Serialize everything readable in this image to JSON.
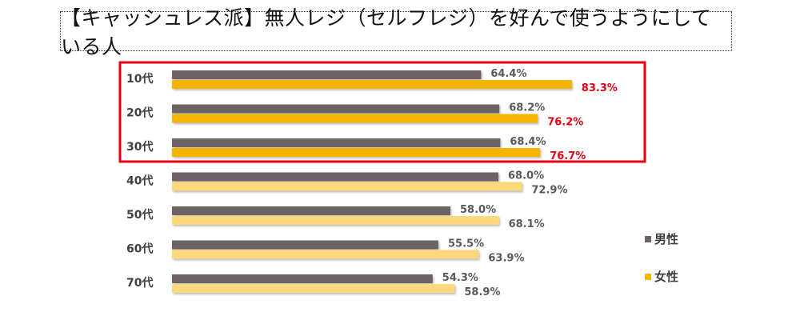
{
  "title": "【キャッシュレス派】無人レジ（セルフレジ）を好んで使うようにしている人",
  "chart_data": {
    "type": "bar",
    "orientation": "horizontal",
    "title": "【キャッシュレス派】無人レジ（セルフレジ）を好んで使うようにしている人",
    "categories": [
      "10代",
      "20代",
      "30代",
      "40代",
      "50代",
      "60代",
      "70代"
    ],
    "series": [
      {
        "name": "男性",
        "values": [
          64.4,
          68.2,
          68.4,
          68.0,
          58.0,
          55.5,
          54.3
        ],
        "color": "#6d6363"
      },
      {
        "name": "女性",
        "values": [
          83.3,
          76.2,
          76.7,
          72.9,
          68.1,
          63.9,
          58.9
        ],
        "color": "#f4b400",
        "color_faded": "#fcd87a"
      }
    ],
    "value_labels": {
      "男性": [
        "64.4%",
        "68.2%",
        "68.4%",
        "68.0%",
        "58.0%",
        "55.5%",
        "54.3%"
      ],
      "女性": [
        "83.3%",
        "76.2%",
        "76.7%",
        "72.9%",
        "68.1%",
        "63.9%",
        "58.9%"
      ]
    },
    "highlighted_categories": [
      "10代",
      "20代",
      "30代"
    ],
    "highlight_color": "#e60012",
    "legend_position": "right",
    "grid": false
  }
}
